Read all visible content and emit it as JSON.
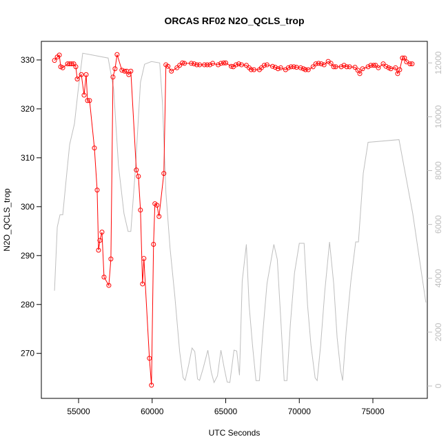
{
  "chart_data": {
    "type": "line",
    "title": "ORCAS RF02 N2O_QCLS_trop",
    "xlabel": "UTC Seconds",
    "ylabel": "N2O_QCLS_trop",
    "xlim": [
      52470,
      78700
    ],
    "xticks": [
      55000,
      60000,
      65000,
      70000,
      75000
    ],
    "ylim": [
      260.8,
      333.8
    ],
    "yticks": [
      270,
      280,
      290,
      300,
      310,
      320,
      330
    ],
    "y2lim": [
      -460,
      12800
    ],
    "y2ticks": [
      0,
      2000,
      4000,
      6000,
      8000,
      10000,
      12000
    ],
    "y2tick_color": "#bebebe",
    "series": [
      {
        "color": "#ff0000",
        "markers": true,
        "x": [
          53364,
          53551,
          53692,
          53785,
          53925,
          54252,
          54393,
          54533,
          54673,
          54813,
          54907,
          55187,
          55374,
          55514,
          55607,
          55748,
          56075,
          56262,
          56355,
          56449,
          56589,
          56729,
          57056,
          57196,
          57337,
          57477,
          57617,
          57944,
          58131,
          58271,
          58411,
          58551,
          58925,
          59066,
          59206,
          59346,
          59439,
          59813,
          59953,
          60094,
          60187,
          60327,
          60467,
          60795,
          60935,
          61075,
          61309,
          61683,
          61869,
          62056,
          62196,
          62664,
          62851,
          63038,
          63224,
          63552,
          63739,
          63925,
          64112,
          64486,
          64673,
          64860,
          65000,
          65374,
          65514,
          65701,
          65888,
          66075,
          66402,
          66589,
          66729,
          66916,
          67290,
          67430,
          67617,
          67804,
          68178,
          68365,
          68552,
          68739,
          69066,
          69253,
          69439,
          69626,
          69813,
          70093,
          70280,
          70421,
          70608,
          70935,
          71122,
          71309,
          71495,
          71682,
          71963,
          72150,
          72337,
          72477,
          72851,
          73038,
          73225,
          73412,
          73785,
          73972,
          74112,
          74299,
          74673,
          74860,
          75047,
          75187,
          75374,
          75701,
          75888,
          76075,
          76215,
          76542,
          76682,
          76822,
          77009,
          77150,
          77290,
          77524,
          77664
        ],
        "values": [
          329.9,
          330.6,
          331.0,
          328.6,
          328.4,
          329.2,
          329.2,
          329.2,
          329.2,
          328.6,
          326.1,
          327.0,
          322.8,
          327.0,
          321.7,
          321.7,
          312.0,
          303.4,
          291.1,
          293.1,
          294.8,
          285.6,
          283.9,
          289.3,
          326.5,
          328.2,
          331.1,
          327.9,
          327.7,
          327.7,
          327.0,
          327.7,
          307.5,
          306.2,
          299.3,
          284.2,
          289.4,
          269.0,
          263.5,
          292.3,
          300.6,
          300.3,
          298.0,
          306.8,
          329.0,
          328.7,
          327.7,
          328.4,
          328.9,
          329.4,
          329.3,
          329.3,
          329.2,
          329.0,
          329.0,
          329.0,
          329.0,
          329.0,
          329.3,
          329.0,
          329.3,
          329.4,
          329.4,
          328.7,
          328.6,
          329.0,
          329.2,
          329.0,
          328.9,
          328.4,
          328.0,
          328.0,
          328.0,
          328.4,
          328.9,
          329.0,
          328.7,
          328.5,
          328.2,
          328.4,
          328.0,
          328.4,
          328.6,
          328.6,
          328.5,
          328.4,
          328.2,
          328.0,
          328.0,
          328.6,
          329.2,
          329.3,
          329.2,
          329.0,
          329.7,
          329.3,
          328.6,
          328.6,
          328.6,
          328.9,
          328.6,
          328.6,
          328.5,
          327.9,
          327.2,
          328.2,
          328.6,
          328.9,
          328.9,
          328.9,
          328.4,
          329.2,
          328.7,
          328.4,
          328.2,
          328.4,
          327.2,
          328.0,
          330.4,
          330.4,
          329.6,
          329.2,
          329.2
        ]
      },
      {
        "color": "#bebebe",
        "axis": "y2",
        "markers": false,
        "x": [
          53364,
          53551,
          53738,
          53925,
          54206,
          54393,
          54720,
          54953,
          55280,
          57009,
          57383,
          57710,
          58084,
          58365,
          58551,
          58879,
          59206,
          59486,
          59953,
          60514,
          60701,
          60935,
          61215,
          61542,
          61869,
          62103,
          62243,
          62477,
          62710,
          62897,
          63084,
          63224,
          63458,
          63785,
          64019,
          64206,
          64440,
          64673,
          64907,
          65094,
          65280,
          65561,
          65748,
          65935,
          66121,
          66402,
          66589,
          66823,
          67056,
          67290,
          67524,
          67804,
          68271,
          68505,
          68739,
          68972,
          69159,
          69393,
          69673,
          70000,
          70327,
          70561,
          70795,
          71075,
          71215,
          71449,
          71729,
          72056,
          72337,
          72570,
          72804,
          72944,
          73178,
          73505,
          73832,
          74019,
          74346,
          74673,
          76776,
          77711,
          78600
        ],
        "values": [
          3540,
          5900,
          6360,
          6360,
          7950,
          8970,
          9740,
          10900,
          12360,
          12180,
          11030,
          8200,
          6410,
          5740,
          5740,
          8200,
          11280,
          11950,
          12050,
          12000,
          10510,
          7180,
          5130,
          3330,
          1280,
          310,
          210,
          770,
          1410,
          1280,
          260,
          210,
          640,
          1330,
          510,
          130,
          380,
          1330,
          640,
          150,
          130,
          1330,
          1300,
          400,
          3900,
          5260,
          3000,
          1500,
          200,
          200,
          2000,
          3800,
          5260,
          4700,
          2500,
          200,
          200,
          2300,
          4200,
          5300,
          5300,
          3000,
          1500,
          300,
          200,
          1500,
          3500,
          5350,
          3800,
          1800,
          600,
          200,
          2000,
          3900,
          5350,
          5350,
          7900,
          9050,
          9150,
          6400,
          3100
        ]
      }
    ]
  }
}
